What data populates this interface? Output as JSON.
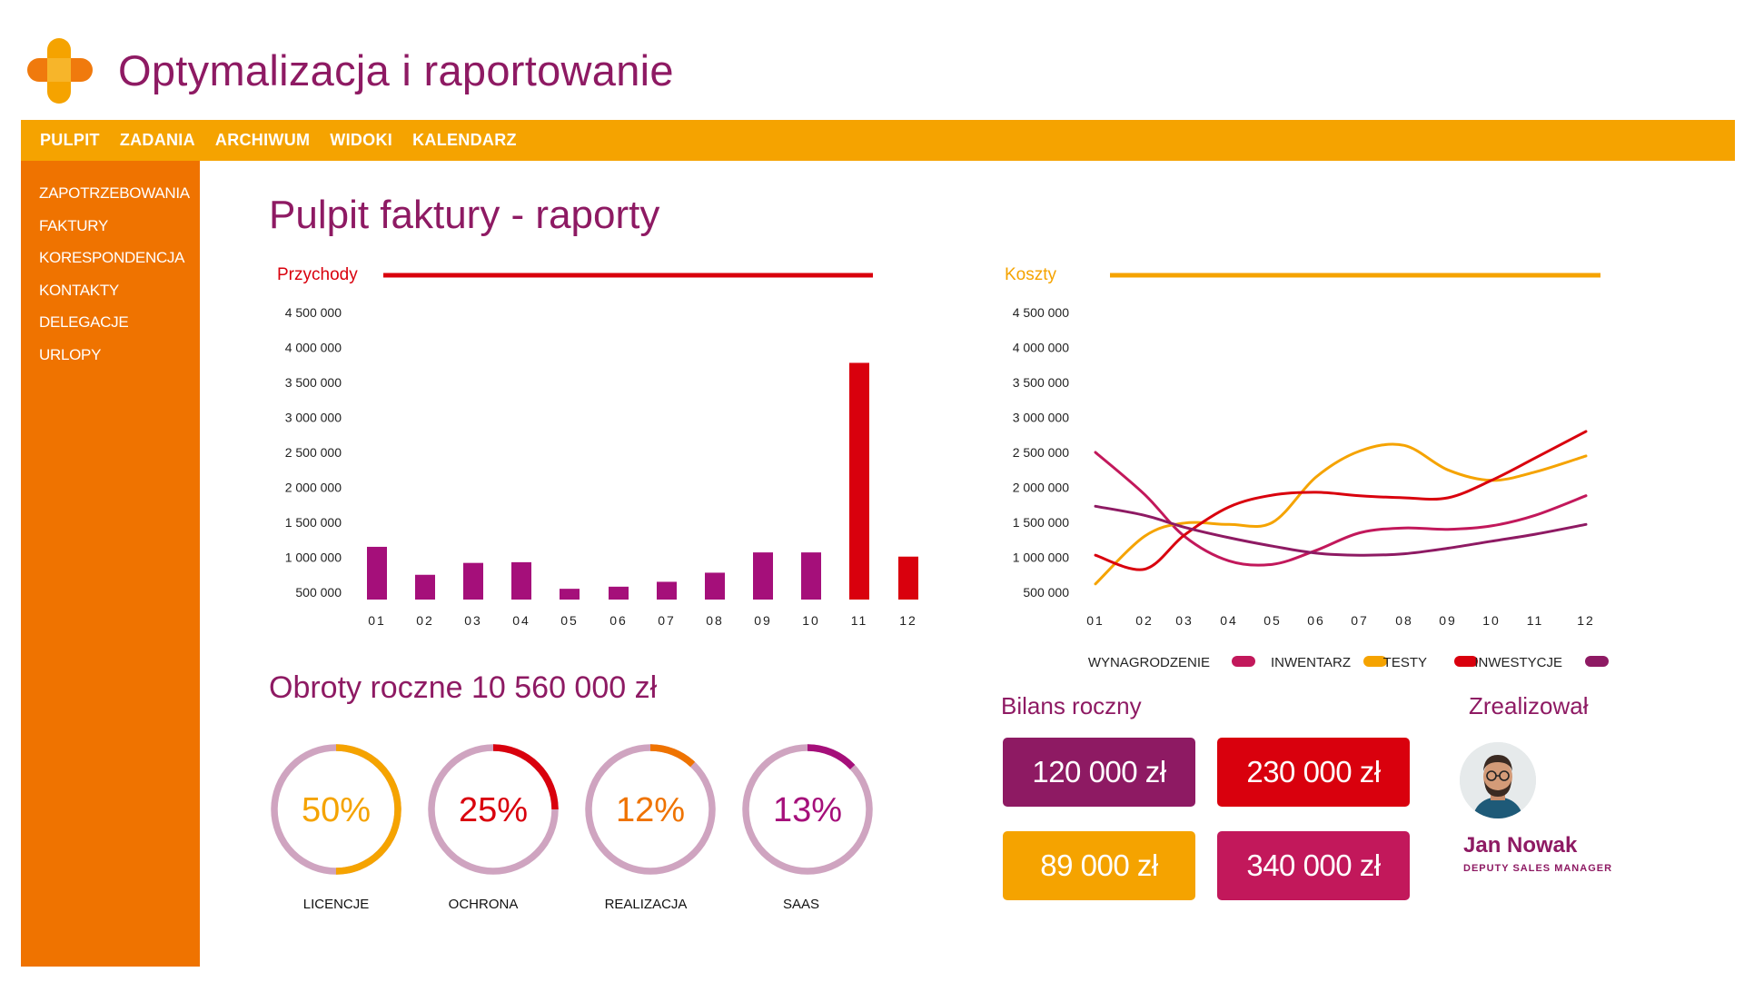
{
  "app": {
    "title": "Optymalizacja i raportowanie"
  },
  "topnav": {
    "items": [
      "PULPIT",
      "ZADANIA",
      "ARCHIWUM",
      "WIDOKI",
      "KALENDARZ"
    ]
  },
  "sidebar": {
    "items": [
      "ZAPOTRZEBOWANIA",
      "FAKTURY",
      "KORESPONDENCJA",
      "KONTAKTY",
      "DELEGACJE",
      "URLOPY"
    ]
  },
  "page": {
    "title": "Pulpit faktury - raporty"
  },
  "colors": {
    "purple": "#8e1a63",
    "orange": "#ef7300",
    "amber": "#f5a300",
    "red": "#d9000d",
    "magenta": "#c2185b",
    "violet": "#a50f7a",
    "ring": "#cfa4c0"
  },
  "chart_data": [
    {
      "type": "bar",
      "title": "Przychody",
      "categories": [
        "01",
        "02",
        "03",
        "04",
        "05",
        "06",
        "07",
        "08",
        "09",
        "10",
        "11",
        "12"
      ],
      "values": [
        1150000,
        750000,
        920000,
        930000,
        550000,
        580000,
        650000,
        780000,
        1070000,
        1070000,
        3780000,
        1010000
      ],
      "highlight": [
        false,
        false,
        false,
        false,
        false,
        false,
        false,
        false,
        false,
        false,
        true,
        true
      ],
      "yticks": [
        "4 500 000",
        "4 000 000",
        "3 500 000",
        "3 000 000",
        "2 500 000",
        "2 000 000",
        "1 500 000",
        "1 000 000",
        "500 000"
      ],
      "ylim": [
        500000,
        4500000
      ],
      "xlabel": "",
      "ylabel": ""
    },
    {
      "type": "line",
      "title": "Koszty",
      "categories": [
        "01",
        "02",
        "03",
        "04",
        "05",
        "06",
        "07",
        "08",
        "09",
        "10",
        "11",
        "12"
      ],
      "yticks": [
        "4 500 000",
        "4 000 000",
        "3 500 000",
        "3 000 000",
        "2 500 000",
        "2 000 000",
        "1 500 000",
        "1 000 000",
        "500 000"
      ],
      "ylim": [
        500000,
        4500000
      ],
      "series": [
        {
          "name": "WYNAGRODZENIE",
          "color": "#c2185b",
          "values": [
            2500000,
            1900000,
            1300000,
            950000,
            900000,
            1100000,
            1350000,
            1420000,
            1400000,
            1450000,
            1600000,
            1880000
          ]
        },
        {
          "name": "INWENTARZ",
          "color": "#f5a300",
          "values": [
            620000,
            1300000,
            1490000,
            1470000,
            1500000,
            2150000,
            2520000,
            2600000,
            2250000,
            2100000,
            2220000,
            2450000
          ]
        },
        {
          "name": "TESTY",
          "color": "#d9000d",
          "values": [
            1030000,
            830000,
            1320000,
            1720000,
            1890000,
            1930000,
            1880000,
            1850000,
            1850000,
            2100000,
            2420000,
            2800000
          ]
        },
        {
          "name": "INWESTYCJE",
          "color": "#8e1a63",
          "values": [
            1730000,
            1600000,
            1430000,
            1280000,
            1160000,
            1060000,
            1030000,
            1050000,
            1130000,
            1230000,
            1330000,
            1470000
          ]
        }
      ]
    }
  ],
  "obroty": {
    "label": "Obroty roczne",
    "value": "10 560 000 zł"
  },
  "donuts": [
    {
      "percent": 50,
      "text": "50%",
      "label": "LICENCJE",
      "color": "#f5a300"
    },
    {
      "percent": 25,
      "text": "25%",
      "label": "OCHRONA",
      "color": "#d9000d"
    },
    {
      "percent": 12,
      "text": "12%",
      "label": "REALIZACJA",
      "color": "#ef7300"
    },
    {
      "percent": 13,
      "text": "13%",
      "label": "SAAS",
      "color": "#a50f7a"
    }
  ],
  "bilans": {
    "title": "Bilans roczny",
    "boxes": [
      {
        "value": "120 000 zł",
        "color": "#8e1a63"
      },
      {
        "value": "230 000 zł",
        "color": "#d9000d"
      },
      {
        "value": "89 000 zł",
        "color": "#f5a300"
      },
      {
        "value": "340 000 zł",
        "color": "#c2185b"
      }
    ]
  },
  "person": {
    "section_title": "Zrealizował",
    "name": "Jan Nowak",
    "role": "DEPUTY SALES MANAGER"
  }
}
